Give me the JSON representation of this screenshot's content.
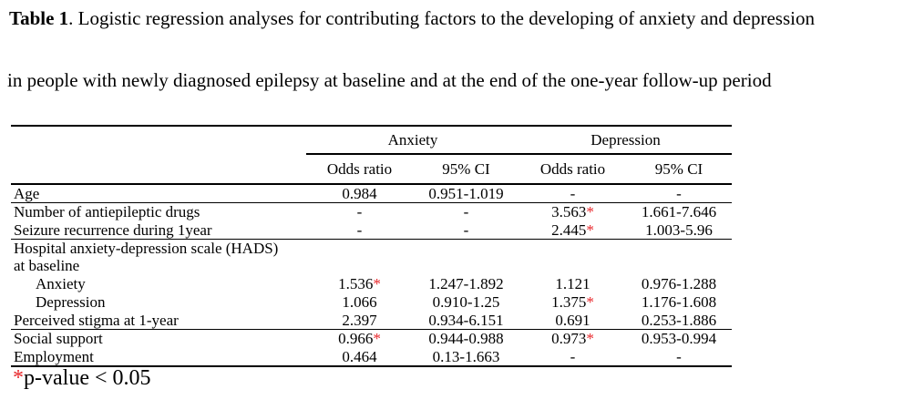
{
  "colors": {
    "star_red": "#e8262a",
    "text": "#000000",
    "background": "#ffffff"
  },
  "title": {
    "line1_bold": "Table 1",
    "line1_rest": ". Logistic regression analyses for contributing factors to the developing of anxiety and depression",
    "line2": "in people with newly diagnosed epilepsy at baseline and at the end of the one-year follow-up period"
  },
  "table": {
    "group_headers": [
      {
        "label": "Anxiety",
        "span": 2
      },
      {
        "label": "Depression",
        "span": 2
      }
    ],
    "column_headers": [
      "Odds ratio",
      "95% CI",
      "Odds ratio",
      "95% CI"
    ],
    "rows": [
      {
        "label": "Age",
        "indent": false,
        "cells": [
          "0.984",
          "0.951-1.019",
          "-",
          "-"
        ],
        "rule_below": "thin"
      },
      {
        "label": "Number of antiepileptic drugs",
        "indent": false,
        "cells": [
          "-",
          "-",
          "3.563*",
          "1.661-7.646"
        ],
        "rule_below": "none"
      },
      {
        "label": "Seizure recurrence during 1year",
        "indent": false,
        "cells": [
          "-",
          "-",
          "2.445*",
          "1.003-5.96"
        ],
        "rule_below": "thin"
      },
      {
        "label": "Hospital anxiety-depression scale (HADS)",
        "label_line2": "at baseline",
        "indent": false,
        "cells": [
          "",
          "",
          "",
          ""
        ],
        "rule_below": "none"
      },
      {
        "label": "Anxiety",
        "indent": true,
        "cells": [
          "1.536*",
          "1.247-1.892",
          "1.121",
          "0.976-1.288"
        ],
        "rule_below": "none"
      },
      {
        "label": "Depression",
        "indent": true,
        "cells": [
          "1.066",
          "0.910-1.25",
          "1.375*",
          "1.176-1.608"
        ],
        "rule_below": "none"
      },
      {
        "label": "Perceived stigma at 1-year",
        "indent": false,
        "cells": [
          "2.397",
          "0.934-6.151",
          "0.691",
          "0.253-1.886"
        ],
        "rule_below": "thin"
      },
      {
        "label": "Social support",
        "indent": false,
        "cells": [
          "0.966*",
          "0.944-0.988",
          "0.973*",
          "0.953-0.994"
        ],
        "rule_below": "none"
      },
      {
        "label": "Employment",
        "indent": false,
        "cells": [
          "0.464",
          "0.13-1.663",
          "-",
          "-"
        ],
        "rule_below": "thick"
      }
    ]
  },
  "footnote": {
    "star": "*",
    "text": "p-value < 0.05"
  }
}
